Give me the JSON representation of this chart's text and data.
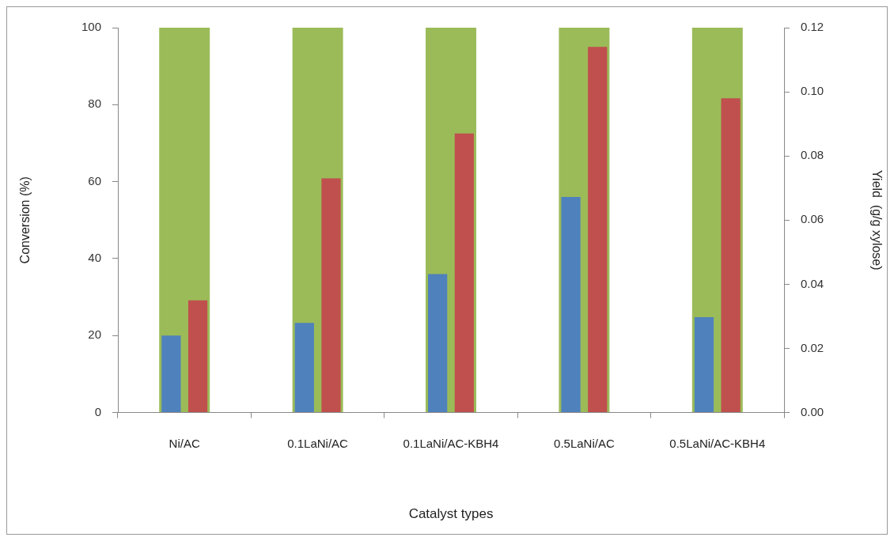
{
  "chart_data": {
    "type": "bar",
    "xlabel": "Catalyst types",
    "ylabel": "Conversion (%)",
    "y2label": "Yield  (g/g xylose)",
    "categories": [
      "Ni/AC",
      "0.1LaNi/AC",
      "0.1LaNi/AC-KBH4",
      "0.5LaNi/AC",
      "0.5LaNi/AC-KBH4"
    ],
    "series": [
      {
        "color": "#9bbb59",
        "values": [
          100,
          100,
          100,
          100,
          100
        ]
      },
      {
        "color": "#4f81bd",
        "values": [
          20,
          23.3,
          36,
          56,
          24.8
        ]
      },
      {
        "color": "#c0504d",
        "values": [
          0.035,
          0.073,
          0.087,
          0.114,
          0.098
        ],
        "axis": "y2"
      }
    ],
    "ylim": [
      0,
      100
    ],
    "yticks": [
      0,
      20,
      40,
      60,
      80,
      100
    ],
    "y2lim": [
      0,
      0.12
    ],
    "y2ticks": [
      {
        "value": 0,
        "label": "0.00"
      },
      {
        "value": 0.02,
        "label": "0.02"
      },
      {
        "value": 0.04,
        "label": "0.04"
      },
      {
        "value": 0.06,
        "label": "0.06"
      },
      {
        "value": 0.08,
        "label": "0.08"
      },
      {
        "value": 0.1,
        "label": "0.10"
      },
      {
        "value": 0.12,
        "label": "0.12"
      }
    ],
    "grid": false,
    "legend": false
  }
}
